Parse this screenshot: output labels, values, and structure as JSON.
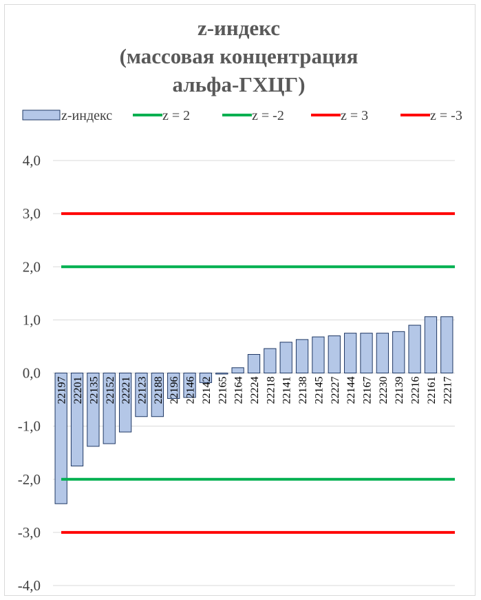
{
  "chart_data": {
    "type": "bar",
    "title": [
      "z-индекс",
      "(массовая концентрация",
      "альфа-ГХЦГ)"
    ],
    "categories": [
      "22197",
      "22201",
      "22135",
      "22152",
      "22221",
      "22123",
      "22188",
      "22196",
      "22146",
      "22142",
      "22165",
      "22164",
      "22224",
      "22218",
      "22141",
      "22138",
      "22145",
      "22227",
      "22144",
      "22167",
      "22230",
      "22139",
      "22216",
      "22161",
      "22217"
    ],
    "series": [
      {
        "name": "z-индекс",
        "values": [
          -2.46,
          -1.75,
          -1.38,
          -1.33,
          -1.11,
          -0.82,
          -0.82,
          -0.48,
          -0.46,
          -0.18,
          -0.02,
          0.1,
          0.35,
          0.46,
          0.58,
          0.63,
          0.68,
          0.7,
          0.75,
          0.75,
          0.75,
          0.78,
          0.9,
          1.06,
          1.06
        ]
      }
    ],
    "reference_lines": [
      {
        "name": "z = 2",
        "value": 2,
        "color": "#00b050"
      },
      {
        "name": "z = -2",
        "value": -2,
        "color": "#00b050"
      },
      {
        "name": "z = 3",
        "value": 3,
        "color": "#ff0000"
      },
      {
        "name": "z = -3",
        "value": -3,
        "color": "#ff0000"
      }
    ],
    "ylim": [
      -4,
      4
    ],
    "yticks": [
      "4,0",
      "3,0",
      "2,0",
      "1,0",
      "0,0",
      "-1,0",
      "-2,0",
      "-3,0",
      "-4,0"
    ],
    "grid": true,
    "legend_position": "top",
    "bar_color": "#b4c7e7",
    "bar_border": "#1f3864"
  }
}
